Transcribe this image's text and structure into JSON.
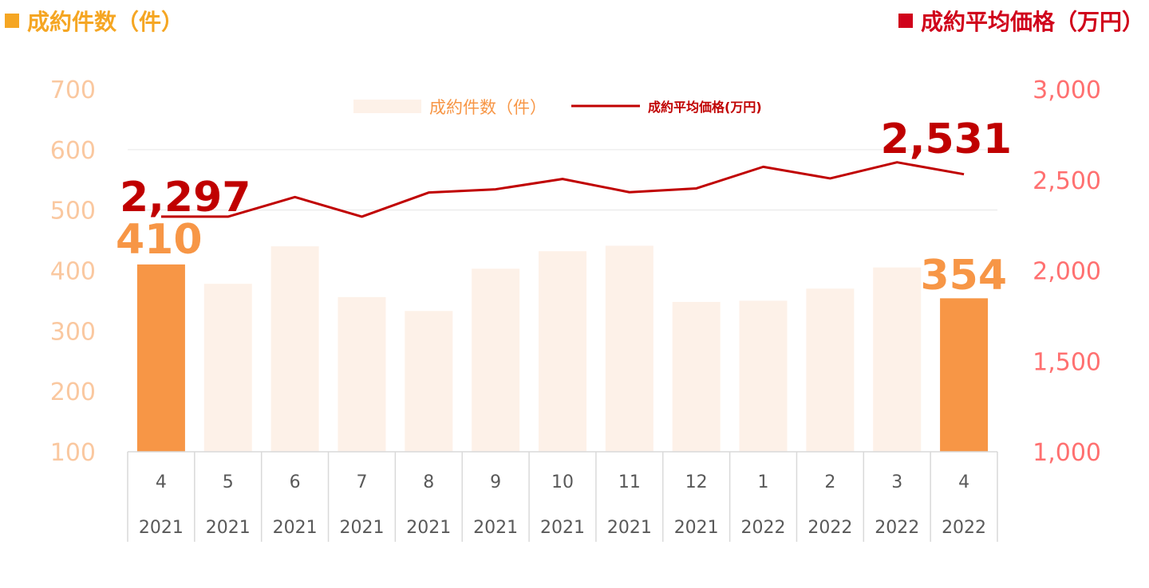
{
  "header": {
    "left_title": "成約件数（件）",
    "right_title": "成約平均価格（万円）"
  },
  "colors": {
    "count_title": "#f5a623",
    "price_title": "#d0021b",
    "bar_highlight": "#f79646",
    "bar_muted": "#fdf1e8",
    "line": "#c00000",
    "left_ticks": "#fac8a0",
    "right_ticks": "#ff7070",
    "callout_count": "#f79646",
    "callout_price": "#c00000",
    "category_text": "#595959",
    "grid": "#d9d9d9"
  },
  "chart_data": {
    "type": "bar",
    "legend_position": "top-center",
    "grid": true,
    "categories": [
      "4",
      "5",
      "6",
      "7",
      "8",
      "9",
      "10",
      "11",
      "12",
      "1",
      "2",
      "3",
      "4"
    ],
    "years": [
      "2021",
      "2021",
      "2021",
      "2021",
      "2021",
      "2021",
      "2021",
      "2021",
      "2021",
      "2022",
      "2022",
      "2022",
      "2022"
    ],
    "y_left": {
      "ylim": [
        100,
        700
      ],
      "ticks": [
        "100",
        "200",
        "300",
        "400",
        "500",
        "600",
        "700"
      ]
    },
    "y_right": {
      "ylim": [
        1000,
        3000
      ],
      "ticks": [
        "1,000",
        "1,500",
        "2,000",
        "2,500",
        "3,000"
      ]
    },
    "series": [
      {
        "name": "成約件数（件）",
        "type": "bar",
        "axis": "left",
        "values": [
          410,
          378,
          440,
          356,
          333,
          403,
          432,
          441,
          348,
          350,
          370,
          405,
          354
        ],
        "highlight_index": [
          0,
          12
        ]
      },
      {
        "name": "成約平均価格(万円)",
        "type": "line",
        "axis": "right",
        "values": [
          2297,
          2297,
          2405,
          2297,
          2430,
          2448,
          2505,
          2432,
          2453,
          2572,
          2508,
          2597,
          2531
        ]
      }
    ],
    "annotations": [
      {
        "series": 1,
        "index": 0,
        "text": "2,297"
      },
      {
        "series": 0,
        "index": 0,
        "text": "410"
      },
      {
        "series": 1,
        "index": 12,
        "text": "2,531"
      },
      {
        "series": 0,
        "index": 12,
        "text": "354"
      }
    ]
  }
}
